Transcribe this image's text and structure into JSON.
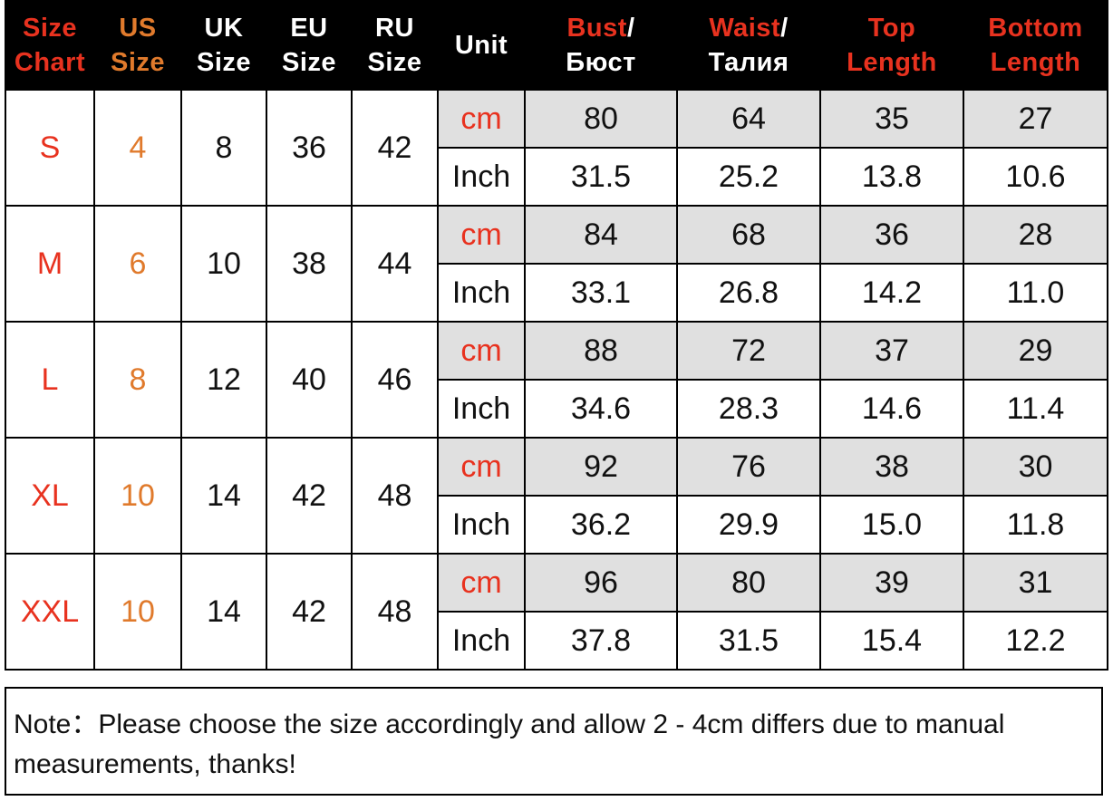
{
  "headers": {
    "size": [
      "Size",
      "Chart"
    ],
    "us": [
      "US",
      "Size"
    ],
    "uk": [
      "UK",
      "Size"
    ],
    "eu": [
      "EU",
      "Size"
    ],
    "ru": [
      "RU",
      "Size"
    ],
    "unit": "Unit",
    "bust": [
      "Bust",
      "/",
      "Бюст"
    ],
    "waist": [
      "Waist",
      "/",
      "Талия"
    ],
    "top": [
      "Top",
      "Length"
    ],
    "bottom": [
      "Bottom",
      "Length"
    ]
  },
  "rows": [
    {
      "size": "S",
      "us": "4",
      "uk": "8",
      "eu": "36",
      "ru": "42",
      "cm": {
        "unit": "cm",
        "bust": "80",
        "waist": "64",
        "top": "35",
        "bottom": "27"
      },
      "inch": {
        "unit": "Inch",
        "bust": "31.5",
        "waist": "25.2",
        "top": "13.8",
        "bottom": "10.6"
      }
    },
    {
      "size": "M",
      "us": "6",
      "uk": "10",
      "eu": "38",
      "ru": "44",
      "cm": {
        "unit": "cm",
        "bust": "84",
        "waist": "68",
        "top": "36",
        "bottom": "28"
      },
      "inch": {
        "unit": "Inch",
        "bust": "33.1",
        "waist": "26.8",
        "top": "14.2",
        "bottom": "11.0"
      }
    },
    {
      "size": "L",
      "us": "8",
      "uk": "12",
      "eu": "40",
      "ru": "46",
      "cm": {
        "unit": "cm",
        "bust": "88",
        "waist": "72",
        "top": "37",
        "bottom": "29"
      },
      "inch": {
        "unit": "Inch",
        "bust": "34.6",
        "waist": "28.3",
        "top": "14.6",
        "bottom": "11.4"
      }
    },
    {
      "size": "XL",
      "us": "10",
      "uk": "14",
      "eu": "42",
      "ru": "48",
      "cm": {
        "unit": "cm",
        "bust": "92",
        "waist": "76",
        "top": "38",
        "bottom": "30"
      },
      "inch": {
        "unit": "Inch",
        "bust": "36.2",
        "waist": "29.9",
        "top": "15.0",
        "bottom": "11.8"
      }
    },
    {
      "size": "XXL",
      "us": "10",
      "uk": "14",
      "eu": "42",
      "ru": "48",
      "cm": {
        "unit": "cm",
        "bust": "96",
        "waist": "80",
        "top": "39",
        "bottom": "31"
      },
      "inch": {
        "unit": "Inch",
        "bust": "37.8",
        "waist": "31.5",
        "top": "15.4",
        "bottom": "12.2"
      }
    }
  ],
  "note": "Note：Please choose the size accordingly and  allow 2 - 4cm differs due to manual measurements, thanks!",
  "colors": {
    "red": "#e8321f",
    "orange": "#e07a2c",
    "header_bg": "#000000",
    "cm_bg": "#e0e0e0"
  }
}
